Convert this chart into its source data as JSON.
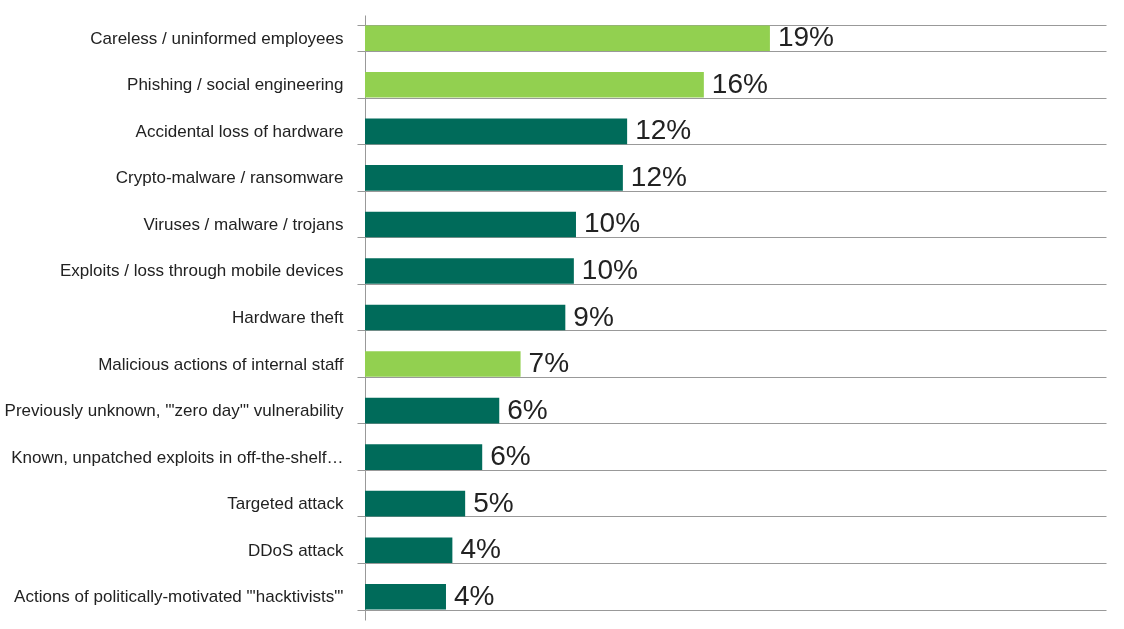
{
  "chart_data": {
    "type": "bar",
    "orientation": "horizontal",
    "categories": [
      "Careless / uninformed employees",
      "Phishing / social engineering",
      "Accidental loss of hardware",
      "Crypto-malware / ransomware",
      "Viruses / malware / trojans",
      "Exploits / loss through mobile devices",
      "Hardware theft",
      "Malicious actions of internal staff",
      "Previously unknown, '\"zero day'\" vulnerability",
      "Known, unpatched exploits in off-the-shelf…",
      "Targeted attack",
      "DDoS attack",
      "Actions of politically-motivated \"'hacktivists\"'"
    ],
    "values": [
      19.0,
      15.9,
      12.3,
      12.1,
      9.9,
      9.8,
      9.4,
      7.3,
      6.3,
      5.5,
      4.7,
      4.1,
      3.8
    ],
    "value_labels": [
      "19%",
      "16%",
      "12%",
      "12%",
      "10%",
      "10%",
      "9%",
      "7%",
      "6%",
      "6%",
      "5%",
      "4%",
      "4%"
    ],
    "colors": [
      "#92d050",
      "#92d050",
      "#006b5a",
      "#006b5a",
      "#006b5a",
      "#006b5a",
      "#006b5a",
      "#92d050",
      "#006b5a",
      "#006b5a",
      "#006b5a",
      "#006b5a",
      "#006b5a"
    ],
    "grid": "y",
    "legend": false
  }
}
